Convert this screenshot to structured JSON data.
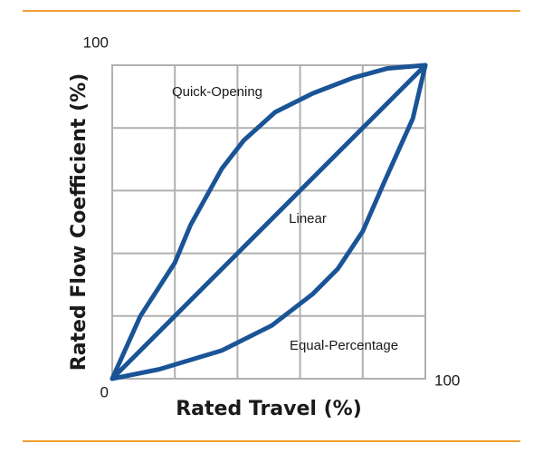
{
  "chart_data": {
    "type": "line",
    "x_label": "Rated Travel (%)",
    "y_label": "Rated Flow Coefficient (%)",
    "xlim": [
      0,
      100
    ],
    "ylim": [
      0,
      100
    ],
    "xticks": [
      100
    ],
    "yticks": [
      0,
      100
    ],
    "xgrid": [
      20,
      40,
      60,
      80
    ],
    "ygrid": [
      20,
      40,
      60,
      80
    ],
    "annotations": [
      "Quick-Opening",
      "Linear",
      "Equal-Percentage"
    ],
    "series": [
      {
        "color": "#1a5496",
        "x": [
          0,
          9,
          20,
          25,
          35,
          42,
          52,
          64,
          77,
          88,
          100
        ],
        "values": [
          0,
          20,
          37,
          49,
          67,
          76,
          85,
          91,
          96,
          99,
          100
        ]
      },
      {
        "color": "#1a5496",
        "x": [
          0,
          20,
          40,
          60,
          80,
          100
        ],
        "values": [
          0,
          20,
          40,
          60,
          80,
          100
        ]
      },
      {
        "color": "#1a5496",
        "x": [
          0,
          15,
          35,
          51,
          64,
          72,
          80,
          87,
          96,
          100
        ],
        "values": [
          0,
          3,
          9,
          17,
          27,
          35,
          47,
          63,
          83,
          100
        ]
      }
    ]
  }
}
